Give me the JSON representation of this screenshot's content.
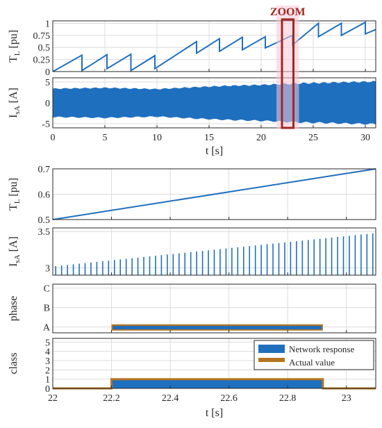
{
  "colors": {
    "response": "#1f6fbf",
    "actual": "#b5751f",
    "zoom": "#a0281e",
    "zoom_fill": "#f7c6d8",
    "grid": "#dcdcdc",
    "text": "#262626"
  },
  "chart_data": [
    {
      "type": "line",
      "id": "tl_full",
      "ylabel_main": "T",
      "ylabel_sub": "L",
      "ylabel_unit": " [pu]",
      "xlim": [
        0,
        31
      ],
      "ylim": [
        0,
        1.05
      ],
      "yticks": [
        0,
        0.25,
        0.5,
        0.75,
        1
      ],
      "ytick_labels": [
        "0",
        "0.25",
        "0.5",
        "0.75",
        "1"
      ],
      "grid": true,
      "x": [
        0,
        2.8,
        2.8,
        5.2,
        5.2,
        7.5,
        7.5,
        9.8,
        9.8,
        13.8,
        13.8,
        16.0,
        16.0,
        18.2,
        18.2,
        20.4,
        20.4,
        23.0,
        23.0,
        25.5,
        25.5,
        27.7,
        27.7,
        30.0,
        30.0,
        31.0
      ],
      "y": [
        0,
        0.34,
        0.02,
        0.35,
        0.06,
        0.36,
        0.02,
        0.33,
        0.06,
        0.62,
        0.38,
        0.68,
        0.42,
        0.71,
        0.45,
        0.72,
        0.49,
        0.75,
        0.55,
        1.0,
        0.72,
        1.0,
        0.75,
        1.02,
        0.78,
        0.87
      ]
    },
    {
      "type": "area",
      "id": "isa_full",
      "ylabel_main": "I",
      "ylabel_sub": "sA",
      "ylabel_unit": " [A]",
      "xlim": [
        0,
        31
      ],
      "ylim": [
        -6,
        6
      ],
      "yticks": [
        -5,
        0,
        5
      ],
      "ytick_labels": [
        "-5",
        "0",
        "5"
      ],
      "grid": true,
      "envelope_x": [
        0,
        5,
        10,
        14,
        17,
        20,
        22,
        24,
        26,
        28,
        31
      ],
      "envelope_amp": [
        3.4,
        3.6,
        3.3,
        3.8,
        4.1,
        4.3,
        4.5,
        4.7,
        4.8,
        4.95,
        5.1
      ],
      "xlabel": "t [s]",
      "xticks": [
        0,
        5,
        10,
        15,
        20,
        25,
        30
      ],
      "xtick_labels": [
        "0",
        "5",
        "10",
        "15",
        "20",
        "25",
        "30"
      ]
    },
    {
      "type": "line",
      "id": "tl_zoom",
      "ylabel_main": "T",
      "ylabel_sub": "L",
      "ylabel_unit": " [pu]",
      "xlim": [
        22,
        23.1
      ],
      "ylim": [
        0.5,
        0.7
      ],
      "yticks": [
        0.5,
        0.6,
        0.7
      ],
      "ytick_labels": [
        "0.5",
        "0.6",
        "0.7"
      ],
      "grid": true,
      "x": [
        22,
        23.1
      ],
      "y": [
        0.5,
        0.7
      ]
    },
    {
      "type": "bar",
      "id": "isa_zoom",
      "ylabel_main": "I",
      "ylabel_sub": "sA",
      "ylabel_unit": " [A]",
      "xlim": [
        22,
        23.1
      ],
      "ylim": [
        2.9,
        3.55
      ],
      "yticks": [
        3,
        3.5
      ],
      "ytick_labels": [
        "3",
        "3.5"
      ],
      "grid": true,
      "spike_start": 22.0,
      "spike_end": 23.1,
      "spike_period": 0.02,
      "spike_base": 2.9,
      "spike_peak_start": 3.02,
      "spike_peak_end": 3.48
    },
    {
      "type": "line",
      "id": "phase",
      "ylabel_main": "phase",
      "xlim": [
        22,
        23.1
      ],
      "ylim": [
        0.7,
        3.2
      ],
      "yticks": [
        1,
        2,
        3
      ],
      "ytick_labels": [
        "A",
        "B",
        "C"
      ],
      "grid": true,
      "x": [
        22.2,
        22.92
      ],
      "response": [
        0.95,
        0.95
      ],
      "actual": [
        1.03,
        1.03
      ]
    },
    {
      "type": "line",
      "id": "class",
      "ylabel_main": "class",
      "xlim": [
        22,
        23.1
      ],
      "ylim": [
        0,
        5.4
      ],
      "yticks": [
        0,
        1,
        2,
        3,
        4,
        5
      ],
      "ytick_labels": [
        "0",
        "1",
        "2",
        "3",
        "4",
        "5"
      ],
      "grid": true,
      "actual_x": [
        22,
        22.2,
        22.2,
        22.92,
        22.92,
        23.1
      ],
      "actual_y": [
        0,
        0,
        1,
        1,
        0,
        0
      ],
      "response_x": [
        22.2,
        22.92
      ],
      "response_y": [
        0.9,
        0.9
      ],
      "legend_position": "top-right",
      "legend": [
        "Network response",
        "Actual value"
      ],
      "xlabel": "t [s]",
      "xticks": [
        22,
        22.2,
        22.4,
        22.6,
        22.8,
        23
      ],
      "xtick_labels": [
        "22",
        "22.2",
        "22.4",
        "22.6",
        "22.8",
        "23"
      ]
    }
  ],
  "annotation": {
    "label": "ZOOM",
    "x_range": [
      22,
      23.1
    ]
  }
}
